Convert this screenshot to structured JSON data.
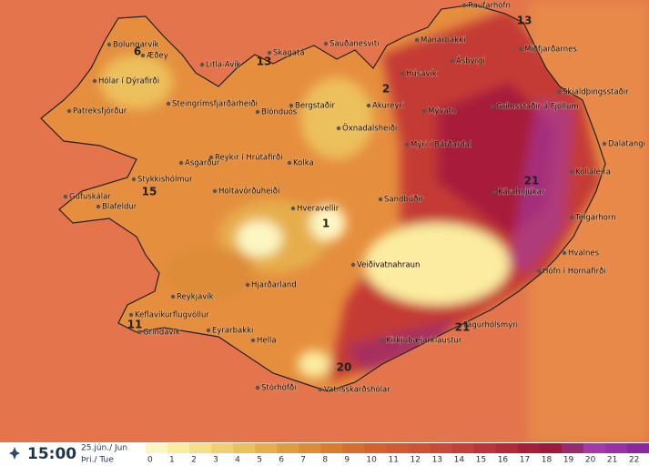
{
  "map": {
    "places": [
      "Raufarhöfn",
      "Mánárbakki",
      "Ásbyrgi",
      "Miðfjarðarnes",
      "Sauðanesviti",
      "Skagatá",
      "Litla-Ávík",
      "Bolungarvík",
      "Æðey",
      "Hólar í Dýrafirði",
      "Patreksfjörður",
      "Steingrímsfjarðarheiði",
      "Blönduós",
      "Bergstaðir",
      "Húsavík",
      "Akureyri",
      "Mývatn",
      "Grímsstaðir á Fjöllum",
      "Skjaldþingsstaðir",
      "Öxnadalsheiði",
      "Mýri í Bárðardal",
      "Dalatangi",
      "Kollaleira",
      "Asgarður",
      "Reykir í Hrútafirði",
      "Kolka",
      "Stykkishólmur",
      "Holtavörðuheiði",
      "Kárahnjúkar",
      "Sandbúðir",
      "Gufuskálar",
      "Blafeldur",
      "Hveravellir",
      "Teigarhorn",
      "Veiðivatnahraun",
      "Hvalnes",
      "Höfn í Hornafirði",
      "Hjarðarland",
      "Reykjavík",
      "Keflavíkurflugvöllur",
      "Eyrarbakki",
      "Grindavík",
      "Hella",
      "Fagurhólsmýri",
      "Kirkjubæjarklaustur",
      "Stórhöfði",
      "Vatnsskarðshólar"
    ],
    "contour_labels": [
      6,
      13,
      2,
      13,
      21,
      15,
      1,
      11,
      20,
      21
    ]
  },
  "footer": {
    "time": "15:00",
    "date": "25.jún./ Jun",
    "weekday": "Þri./ Tue"
  },
  "legend": {
    "values": [
      0,
      1,
      2,
      3,
      4,
      5,
      6,
      7,
      8,
      9,
      10,
      11,
      12,
      13,
      14,
      15,
      16,
      17,
      18,
      19,
      20,
      21,
      22
    ],
    "colors": [
      "#fdf6c2",
      "#fbeca0",
      "#f7de88",
      "#f2d070",
      "#ecc05c",
      "#e6ae4c",
      "#e29c40",
      "#de8c38",
      "#d97c32",
      "#d66e30",
      "#d4622f",
      "#d25a32",
      "#d05236",
      "#cc4838",
      "#c63e3a",
      "#be323a",
      "#b4283a",
      "#a81e3a",
      "#9c1a3e",
      "#9a2a70",
      "#a43aa8",
      "#9a30a8",
      "#8a28a0"
    ]
  }
}
